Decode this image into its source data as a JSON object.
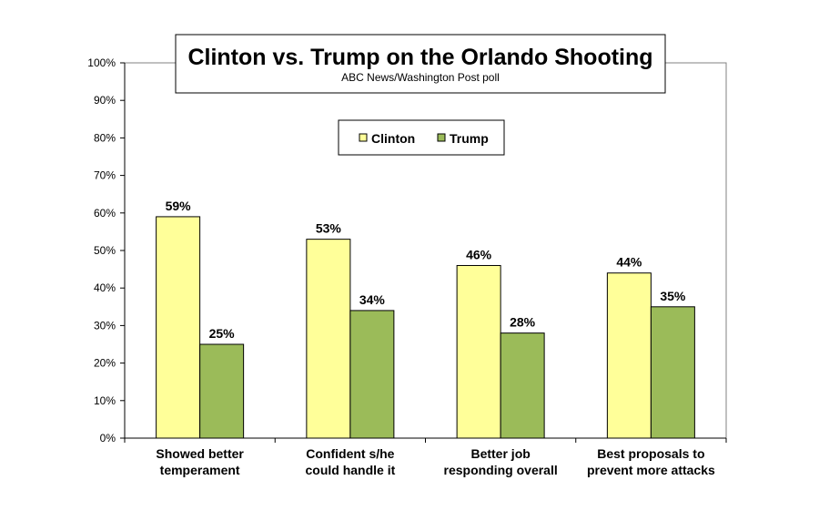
{
  "chart_data": {
    "type": "bar",
    "title": "Clinton vs. Trump on the Orlando Shooting",
    "subtitle": "ABC News/Washington  Post poll",
    "categories": [
      [
        "Showed better",
        "temperament"
      ],
      [
        "Confident s/he",
        "could handle it"
      ],
      [
        "Better job",
        "responding overall"
      ],
      [
        "Best proposals to",
        "prevent more attacks"
      ]
    ],
    "series": [
      {
        "name": "Clinton",
        "values": [
          59,
          53,
          46,
          44
        ],
        "labels": [
          "59%",
          "53%",
          "46%",
          "44%"
        ],
        "color": "#ffff99"
      },
      {
        "name": "Trump",
        "values": [
          25,
          34,
          28,
          35
        ],
        "labels": [
          "25%",
          "34%",
          "28%",
          "35%"
        ],
        "color": "#9bbb59"
      }
    ],
    "yticks": [
      "0%",
      "10%",
      "20%",
      "30%",
      "40%",
      "50%",
      "60%",
      "70%",
      "80%",
      "90%",
      "100%"
    ],
    "ylim": [
      0,
      100
    ],
    "grid": false,
    "legend": "top-center"
  }
}
